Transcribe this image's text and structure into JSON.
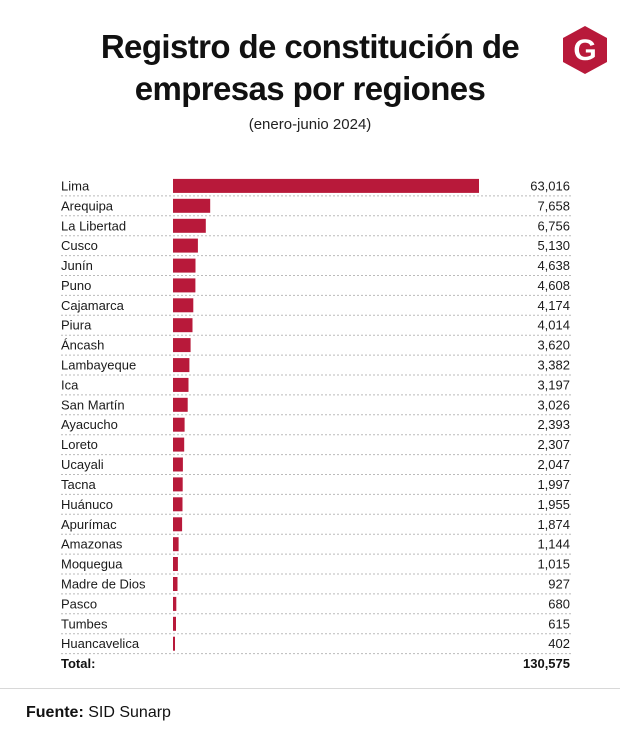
{
  "logo": {
    "letter": "G",
    "color": "#b8193a"
  },
  "chart_data": {
    "type": "bar",
    "orientation": "horizontal",
    "title_lines": [
      "Registro de constitución de",
      "empresas por regiones"
    ],
    "subtitle": "(enero-junio 2024)",
    "categories": [
      "Lima",
      "Arequipa",
      "La Libertad",
      "Cusco",
      "Junín",
      "Puno",
      "Cajamarca",
      "Piura",
      "Áncash",
      "Lambayeque",
      "Ica",
      "San Martín",
      "Ayacucho",
      "Loreto",
      "Ucayali",
      "Tacna",
      "Huánuco",
      "Apurímac",
      "Amazonas",
      "Moquegua",
      "Madre de Dios",
      "Pasco",
      "Tumbes",
      "Huancavelica"
    ],
    "values": [
      63016,
      7658,
      6756,
      5130,
      4638,
      4608,
      4174,
      4014,
      3620,
      3382,
      3197,
      3026,
      2393,
      2307,
      2047,
      1997,
      1955,
      1874,
      1144,
      1015,
      927,
      680,
      615,
      402
    ],
    "value_labels": [
      "63,016",
      "7,658",
      "6,756",
      "5,130",
      "4,638",
      "4,608",
      "4,174",
      "4,014",
      "3,620",
      "3,382",
      "3,197",
      "3,026",
      "2,393",
      "2,307",
      "2,047",
      "1,997",
      "1,955",
      "1,874",
      "1,144",
      "1,015",
      "927",
      "680",
      "615",
      "402"
    ],
    "total_label": "Total:",
    "total_value": "130,575",
    "xlim": [
      0,
      63016
    ],
    "bar_color": "#b8193a",
    "grid": false
  },
  "source": {
    "label": "Fuente:",
    "text": " SID Sunarp"
  }
}
